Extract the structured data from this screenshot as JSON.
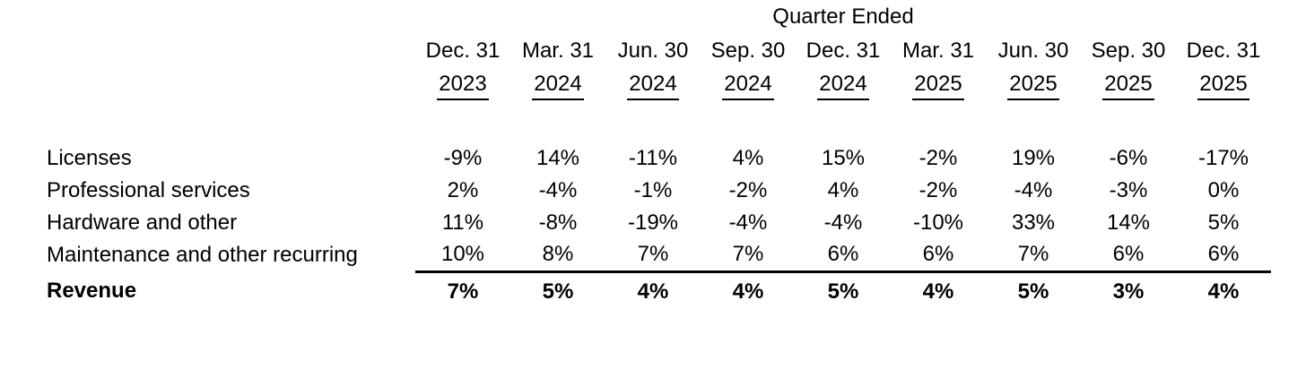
{
  "colors": {
    "background": "#ffffff",
    "text": "#000000",
    "rule": "#000000"
  },
  "table": {
    "group_header": "Quarter Ended",
    "columns": [
      {
        "month": "Dec. 31",
        "year": "2023"
      },
      {
        "month": "Mar. 31",
        "year": "2024"
      },
      {
        "month": "Jun. 30",
        "year": "2024"
      },
      {
        "month": "Sep. 30",
        "year": "2024"
      },
      {
        "month": "Dec. 31",
        "year": "2024"
      },
      {
        "month": "Mar. 31",
        "year": "2025"
      },
      {
        "month": "Jun. 30",
        "year": "2025"
      },
      {
        "month": "Sep. 30",
        "year": "2025"
      },
      {
        "month": "Dec. 31",
        "year": "2025"
      }
    ],
    "rows": [
      {
        "label": "Licenses",
        "values": [
          "-9%",
          "14%",
          "-11%",
          "4%",
          "15%",
          "-2%",
          "19%",
          "-6%",
          "-17%"
        ]
      },
      {
        "label": "Professional services",
        "values": [
          "2%",
          "-4%",
          "-1%",
          "-2%",
          "4%",
          "-2%",
          "-4%",
          "-3%",
          "0%"
        ]
      },
      {
        "label": "Hardware and other",
        "values": [
          "11%",
          "-8%",
          "-19%",
          "-4%",
          "-4%",
          "-10%",
          "33%",
          "14%",
          "5%"
        ]
      },
      {
        "label": "Maintenance and other recurring",
        "values": [
          "10%",
          "8%",
          "7%",
          "7%",
          "6%",
          "6%",
          "7%",
          "6%",
          "6%"
        ]
      },
      {
        "label": "Revenue",
        "values": [
          "7%",
          "5%",
          "4%",
          "4%",
          "5%",
          "4%",
          "5%",
          "3%",
          "4%"
        ]
      }
    ]
  },
  "chart_data": {
    "type": "table",
    "title": "Quarter Ended",
    "categories": [
      "Dec. 31 2023",
      "Mar. 31 2024",
      "Jun. 30 2024",
      "Sep. 30 2024",
      "Dec. 31 2024",
      "Mar. 31 2025",
      "Jun. 30 2025",
      "Sep. 30 2025",
      "Dec. 31 2025"
    ],
    "unit": "percent",
    "series": [
      {
        "name": "Licenses",
        "values": [
          -9,
          14,
          -11,
          4,
          15,
          -2,
          19,
          -6,
          -17
        ]
      },
      {
        "name": "Professional services",
        "values": [
          2,
          -4,
          -1,
          -2,
          4,
          -2,
          -4,
          -3,
          0
        ]
      },
      {
        "name": "Hardware and other",
        "values": [
          11,
          -8,
          -19,
          -4,
          -4,
          -10,
          33,
          14,
          5
        ]
      },
      {
        "name": "Maintenance and other recurring",
        "values": [
          10,
          8,
          7,
          7,
          6,
          6,
          7,
          6,
          6
        ]
      },
      {
        "name": "Revenue",
        "values": [
          7,
          5,
          4,
          4,
          5,
          4,
          5,
          3,
          4
        ]
      }
    ]
  }
}
